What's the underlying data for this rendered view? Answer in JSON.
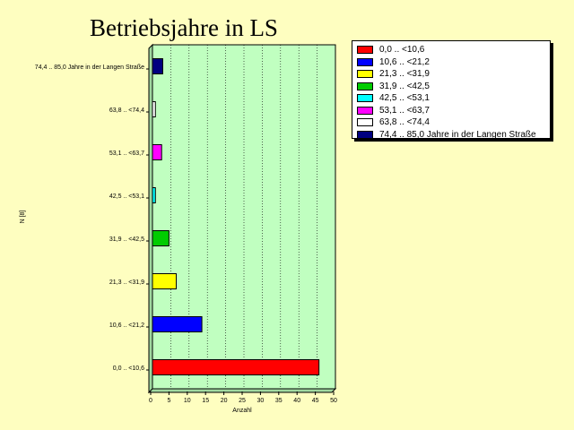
{
  "chart_data": {
    "type": "bar",
    "orientation": "horizontal",
    "title": "Betriebsjahre in LS",
    "xlabel": "Anzahl",
    "ylabel": "N [8]",
    "xlim": [
      0,
      50
    ],
    "xticks": [
      "0",
      "5",
      "10",
      "15",
      "20",
      "25",
      "30",
      "35",
      "40",
      "45",
      "50"
    ],
    "grid": true,
    "legend_position": "top-right",
    "categories": [
      "0,0 .. <10,6",
      "10,6 .. <21,2",
      "21,3 .. <31,9",
      "31,9 .. <42,5",
      "42,5 .. <53,1",
      "53,1 .. <63,7",
      "63,8 .. <74,4",
      "74,4 .. 85,0 Jahre in der Langen Straße"
    ],
    "values": [
      45.5,
      13.5,
      6.5,
      4.5,
      0.8,
      2.5,
      0.8,
      2.8
    ],
    "colors": [
      "#ff0000",
      "#0000ff",
      "#ffff00",
      "#00cc00",
      "#00ffff",
      "#ff00ff",
      "#ffffff",
      "#000080"
    ]
  },
  "legend": {
    "items": [
      {
        "label": "0,0 .. <10,6",
        "color": "#ff0000"
      },
      {
        "label": "10,6 .. <21,2",
        "color": "#0000ff"
      },
      {
        "label": "21,3 .. <31,9",
        "color": "#ffff00"
      },
      {
        "label": "31,9 .. <42,5",
        "color": "#00cc00"
      },
      {
        "label": "42,5 .. <53,1",
        "color": "#00ffff"
      },
      {
        "label": "53,1 .. <63,7",
        "color": "#ff00ff"
      },
      {
        "label": "63,8 .. <74,4",
        "color": "#ffffff"
      },
      {
        "label": "74,4 .. 85,0 Jahre in der Langen Straße",
        "color": "#000080"
      }
    ]
  },
  "colors": {
    "background": "#fefec0",
    "plot_area": "#c0ffc0",
    "grid": "#000000"
  }
}
